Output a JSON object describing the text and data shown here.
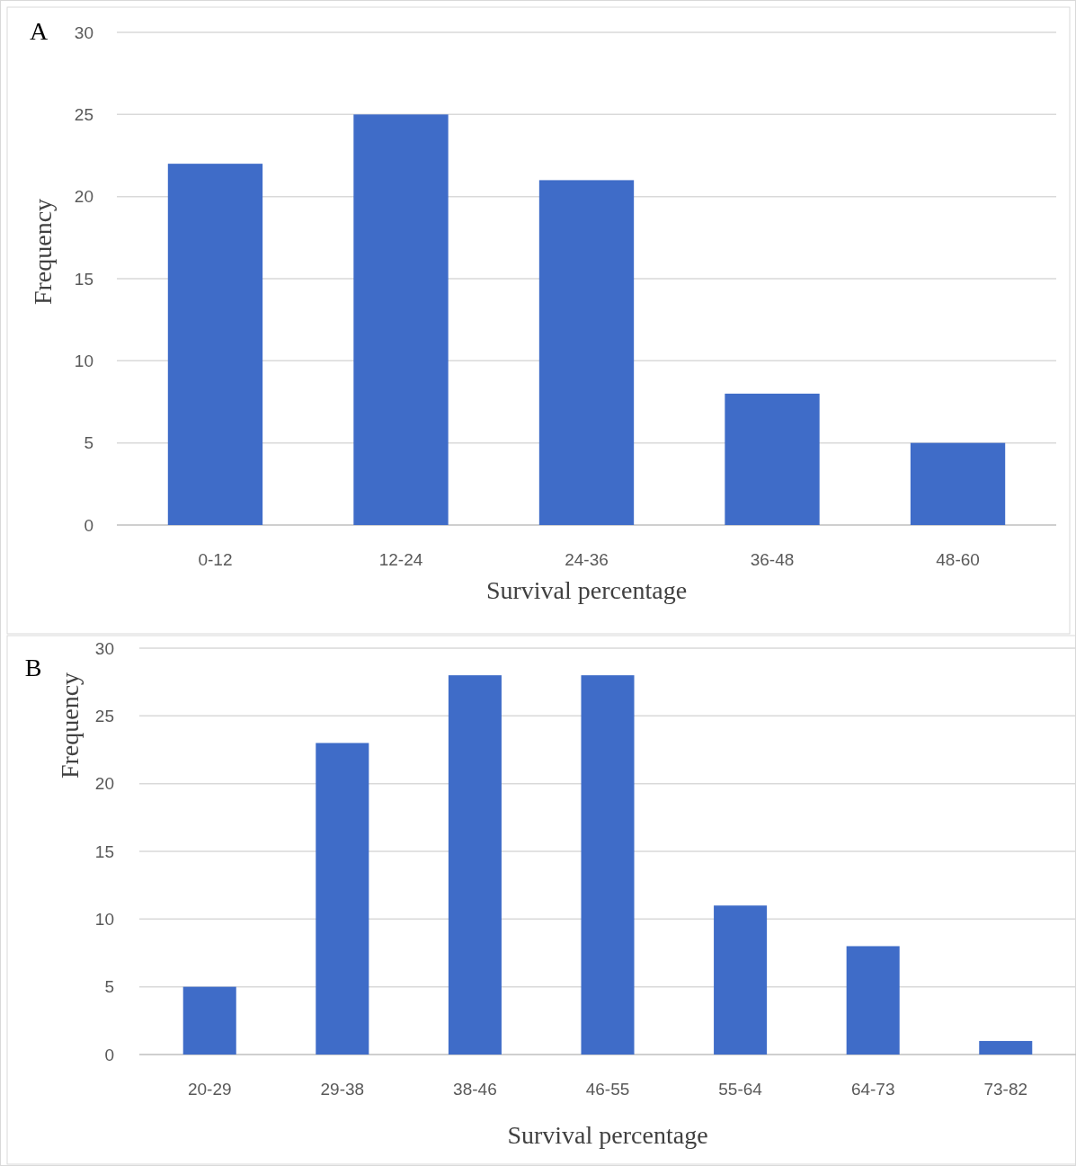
{
  "chart_data": [
    {
      "type": "bar",
      "title": "A",
      "xlabel": "Survival percentage",
      "ylabel": "Frequency",
      "categories": [
        "0-12",
        "12-24",
        "24-36",
        "36-48",
        "48-60"
      ],
      "values": [
        22,
        25,
        21,
        8,
        5
      ],
      "color": "#3f6cc8",
      "ylim": [
        0,
        30
      ],
      "yticks": [
        0,
        5,
        10,
        15,
        20,
        25,
        30
      ],
      "grid": "y"
    },
    {
      "type": "bar",
      "title": "B",
      "xlabel": "Survival percentage",
      "ylabel": "Frequency",
      "categories": [
        "20-29",
        "29-38",
        "38-46",
        "46-55",
        "55-64",
        "64-73",
        "73-82"
      ],
      "values": [
        5,
        23,
        28,
        28,
        11,
        8,
        1
      ],
      "color": "#3f6cc8",
      "ylim": [
        0,
        30
      ],
      "yticks": [
        0,
        5,
        10,
        15,
        20,
        25,
        30
      ],
      "grid": "y"
    }
  ]
}
